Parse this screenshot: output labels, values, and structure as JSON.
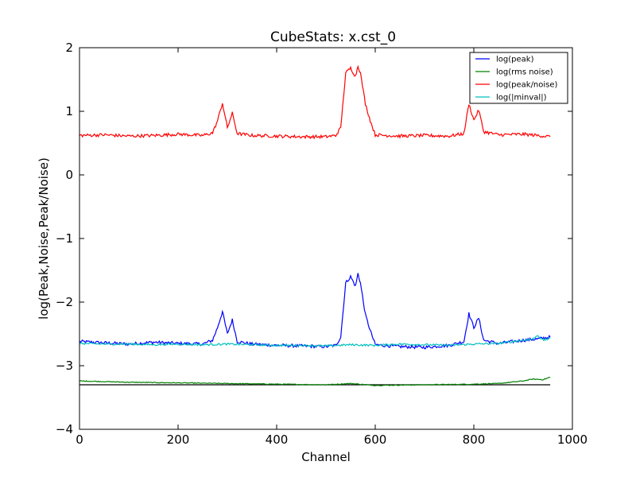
{
  "chart_data": {
    "type": "line",
    "title": "CubeStats: x.cst_0",
    "xlabel": "Channel",
    "ylabel": "log(Peak,Noise,Peak/Noise)",
    "xlim": [
      0,
      1000
    ],
    "ylim": [
      -4,
      2
    ],
    "xticks": [
      0,
      200,
      400,
      600,
      800,
      1000
    ],
    "yticks": [
      -4,
      -3,
      -2,
      -1,
      0,
      1,
      2
    ],
    "xtick_labels": [
      "0",
      "200",
      "400",
      "600",
      "800",
      "1000"
    ],
    "ytick_labels": [
      "−4",
      "−3",
      "−2",
      "−1",
      "0",
      "1",
      "2"
    ],
    "grid": false,
    "legend_position": "top-right",
    "reference_line": {
      "y": -3.3,
      "x": [
        0,
        955
      ],
      "color": "#000000"
    },
    "series": [
      {
        "name": "log(peak)",
        "color": "#0000ff",
        "x": [
          0,
          50,
          100,
          150,
          200,
          250,
          270,
          280,
          290,
          300,
          310,
          320,
          350,
          400,
          450,
          500,
          520,
          530,
          540,
          550,
          560,
          565,
          570,
          580,
          590,
          600,
          650,
          700,
          750,
          780,
          790,
          800,
          810,
          820,
          850,
          900,
          930,
          955
        ],
        "y": [
          -2.62,
          -2.64,
          -2.66,
          -2.63,
          -2.65,
          -2.66,
          -2.6,
          -2.4,
          -2.15,
          -2.5,
          -2.28,
          -2.62,
          -2.66,
          -2.68,
          -2.69,
          -2.7,
          -2.68,
          -2.55,
          -1.7,
          -1.6,
          -1.75,
          -1.55,
          -1.7,
          -2.2,
          -2.45,
          -2.67,
          -2.7,
          -2.71,
          -2.68,
          -2.62,
          -2.18,
          -2.4,
          -2.25,
          -2.6,
          -2.65,
          -2.6,
          -2.58,
          -2.55
        ]
      },
      {
        "name": "log(rms noise)",
        "color": "#008000",
        "x": [
          0,
          100,
          200,
          300,
          400,
          500,
          550,
          600,
          700,
          800,
          850,
          900,
          920,
          940,
          955
        ],
        "y": [
          -3.24,
          -3.26,
          -3.27,
          -3.28,
          -3.29,
          -3.3,
          -3.28,
          -3.31,
          -3.3,
          -3.29,
          -3.28,
          -3.24,
          -3.21,
          -3.22,
          -3.18
        ]
      },
      {
        "name": "log(peak/noise)",
        "color": "#ff0000",
        "x": [
          0,
          50,
          100,
          150,
          200,
          250,
          270,
          280,
          290,
          300,
          310,
          320,
          350,
          400,
          450,
          500,
          520,
          530,
          540,
          550,
          560,
          565,
          570,
          580,
          590,
          600,
          650,
          700,
          750,
          780,
          790,
          800,
          810,
          820,
          850,
          900,
          930,
          955
        ],
        "y": [
          0.62,
          0.63,
          0.61,
          0.62,
          0.64,
          0.62,
          0.66,
          0.85,
          1.13,
          0.74,
          0.97,
          0.65,
          0.62,
          0.61,
          0.6,
          0.6,
          0.62,
          0.74,
          1.6,
          1.68,
          1.55,
          1.72,
          1.6,
          1.12,
          0.85,
          0.63,
          0.61,
          0.62,
          0.61,
          0.65,
          1.12,
          0.86,
          1.02,
          0.68,
          0.63,
          0.64,
          0.62,
          0.6
        ]
      },
      {
        "name": "log(|minval|)",
        "color": "#00bfbf",
        "x": [
          0,
          50,
          100,
          150,
          200,
          250,
          300,
          350,
          400,
          450,
          500,
          550,
          600,
          650,
          700,
          750,
          800,
          850,
          880,
          900,
          920,
          930,
          940,
          955
        ],
        "y": [
          -2.65,
          -2.66,
          -2.66,
          -2.67,
          -2.66,
          -2.67,
          -2.66,
          -2.67,
          -2.68,
          -2.68,
          -2.69,
          -2.67,
          -2.68,
          -2.66,
          -2.67,
          -2.68,
          -2.66,
          -2.65,
          -2.62,
          -2.6,
          -2.58,
          -2.52,
          -2.6,
          -2.57
        ]
      }
    ]
  }
}
